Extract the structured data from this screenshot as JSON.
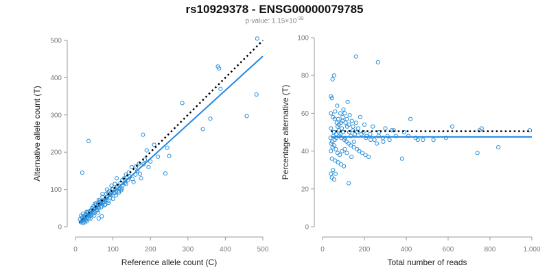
{
  "header": {
    "title": "rs10929378 - ENSG00000079785",
    "pvalue_prefix": "p-value: 1.15×10",
    "pvalue_exponent": "-39"
  },
  "colors": {
    "point": "#2a8fd8",
    "fit": "#1e88e5",
    "reference": "#000000"
  },
  "chart_data": [
    {
      "type": "scatter",
      "title": "",
      "xlabel": "Reference allele count (C)",
      "ylabel": "Alternative allele count (T)",
      "xlim": [
        0,
        500
      ],
      "ylim": [
        0,
        500
      ],
      "xticks": [
        0,
        100,
        200,
        300,
        400,
        500
      ],
      "yticks": [
        0,
        100,
        200,
        300,
        400,
        500
      ],
      "xtick_labels": [
        "0",
        "100",
        "200",
        "300",
        "400",
        "500"
      ],
      "ytick_labels": [
        "0",
        "100",
        "200",
        "300",
        "400",
        "500"
      ],
      "grid": false,
      "reference_line": {
        "style": "dotted",
        "slope": 1.0,
        "intercept": 0,
        "x_range": [
          10,
          500
        ]
      },
      "fit_line": {
        "style": "solid",
        "slope": 0.915,
        "intercept": 0,
        "x_range": [
          10,
          500
        ]
      },
      "points": [
        [
          485,
          505
        ],
        [
          380,
          430
        ],
        [
          383,
          425
        ],
        [
          387,
          370
        ],
        [
          483,
          355
        ],
        [
          457,
          297
        ],
        [
          285,
          332
        ],
        [
          360,
          290
        ],
        [
          340,
          262
        ],
        [
          210,
          220
        ],
        [
          180,
          247
        ],
        [
          245,
          212
        ],
        [
          250,
          190
        ],
        [
          240,
          143
        ],
        [
          220,
          188
        ],
        [
          200,
          175
        ],
        [
          195,
          160
        ],
        [
          190,
          205
        ],
        [
          185,
          180
        ],
        [
          170,
          170
        ],
        [
          175,
          130
        ],
        [
          165,
          150
        ],
        [
          160,
          140
        ],
        [
          155,
          120
        ],
        [
          150,
          160
        ],
        [
          145,
          135
        ],
        [
          140,
          125
        ],
        [
          135,
          115
        ],
        [
          130,
          130
        ],
        [
          125,
          110
        ],
        [
          120,
          118
        ],
        [
          118,
          100
        ],
        [
          115,
          95
        ],
        [
          110,
          105
        ],
        [
          105,
          90
        ],
        [
          100,
          100
        ],
        [
          95,
          85
        ],
        [
          92,
          78
        ],
        [
          90,
          95
        ],
        [
          88,
          70
        ],
        [
          85,
          80
        ],
        [
          82,
          88
        ],
        [
          80,
          60
        ],
        [
          78,
          72
        ],
        [
          75,
          65
        ],
        [
          72,
          80
        ],
        [
          70,
          55
        ],
        [
          68,
          62
        ],
        [
          65,
          70
        ],
        [
          62,
          50
        ],
        [
          60,
          58
        ],
        [
          58,
          45
        ],
        [
          55,
          62
        ],
        [
          52,
          48
        ],
        [
          50,
          40
        ],
        [
          48,
          55
        ],
        [
          45,
          38
        ],
        [
          42,
          45
        ],
        [
          40,
          35
        ],
        [
          38,
          42
        ],
        [
          35,
          30
        ],
        [
          32,
          38
        ],
        [
          30,
          25
        ],
        [
          28,
          32
        ],
        [
          25,
          20
        ],
        [
          22,
          28
        ],
        [
          20,
          18
        ],
        [
          18,
          25
        ],
        [
          15,
          12
        ],
        [
          12,
          20
        ],
        [
          35,
          230
        ],
        [
          18,
          145
        ],
        [
          110,
          130
        ],
        [
          125,
          125
        ],
        [
          135,
          140
        ],
        [
          105,
          115
        ],
        [
          98,
          102
        ],
        [
          86,
          92
        ],
        [
          74,
          68
        ],
        [
          66,
          60
        ],
        [
          56,
          52
        ],
        [
          46,
          44
        ],
        [
          36,
          34
        ],
        [
          26,
          24
        ],
        [
          16,
          15
        ],
        [
          24,
          30
        ],
        [
          34,
          40
        ],
        [
          44,
          50
        ],
        [
          54,
          58
        ],
        [
          64,
          66
        ],
        [
          28,
          18
        ],
        [
          38,
          28
        ],
        [
          48,
          36
        ],
        [
          58,
          44
        ],
        [
          68,
          52
        ],
        [
          78,
          58
        ],
        [
          88,
          64
        ],
        [
          70,
          28
        ],
        [
          62,
          22
        ],
        [
          20,
          10
        ],
        [
          30,
          15
        ],
        [
          40,
          22
        ],
        [
          50,
          30
        ],
        [
          60,
          38
        ],
        [
          82,
          72
        ],
        [
          92,
          86
        ],
        [
          102,
          92
        ],
        [
          112,
          108
        ],
        [
          122,
          98
        ],
        [
          132,
          118
        ],
        [
          142,
          145
        ],
        [
          152,
          128
        ],
        [
          162,
          162
        ],
        [
          172,
          142
        ],
        [
          182,
          168
        ],
        [
          100,
          75
        ],
        [
          108,
          84
        ],
        [
          116,
          92
        ],
        [
          124,
          102
        ],
        [
          96,
          110
        ],
        [
          15,
          30
        ],
        [
          20,
          35
        ],
        [
          25,
          12
        ],
        [
          30,
          40
        ],
        [
          35,
          22
        ],
        [
          42,
          30
        ],
        [
          52,
          62
        ],
        [
          62,
          72
        ],
        [
          72,
          88
        ],
        [
          84,
          100
        ]
      ]
    },
    {
      "type": "scatter",
      "title": "",
      "xlabel": "Total number of reads",
      "ylabel": "Percentage alternative (T)",
      "xlim": [
        0,
        1000
      ],
      "ylim": [
        0,
        100
      ],
      "xticks": [
        0,
        200,
        400,
        600,
        800,
        1000
      ],
      "yticks": [
        0,
        20,
        40,
        60,
        80,
        100
      ],
      "xtick_labels": [
        "0",
        "200",
        "400",
        "600",
        "800",
        "1,000"
      ],
      "ytick_labels": [
        "0",
        "20",
        "40",
        "60",
        "80",
        "100"
      ],
      "grid": false,
      "reference_line": {
        "style": "dotted",
        "value": 50.5,
        "x_range": [
          40,
          1000
        ]
      },
      "fit_line": {
        "style": "solid",
        "value": 47.5,
        "x_range": [
          40,
          1000
        ]
      },
      "points": [
        [
          160,
          90
        ],
        [
          265,
          87
        ],
        [
          55,
          80
        ],
        [
          48,
          78
        ],
        [
          40,
          69
        ],
        [
          45,
          68
        ],
        [
          120,
          66
        ],
        [
          70,
          64
        ],
        [
          100,
          62
        ],
        [
          60,
          61
        ],
        [
          85,
          60
        ],
        [
          130,
          59
        ],
        [
          180,
          58
        ],
        [
          420,
          57
        ],
        [
          75,
          57
        ],
        [
          95,
          56
        ],
        [
          140,
          56
        ],
        [
          110,
          55
        ],
        [
          160,
          55
        ],
        [
          200,
          54
        ],
        [
          620,
          53
        ],
        [
          760,
          52
        ],
        [
          990,
          51
        ],
        [
          750,
          51
        ],
        [
          340,
          51
        ],
        [
          300,
          52
        ],
        [
          270,
          50
        ],
        [
          330,
          51
        ],
        [
          390,
          50
        ],
        [
          240,
          53
        ],
        [
          40,
          52
        ],
        [
          55,
          50
        ],
        [
          65,
          49
        ],
        [
          80,
          48
        ],
        [
          90,
          47
        ],
        [
          105,
          46
        ],
        [
          115,
          45
        ],
        [
          125,
          44
        ],
        [
          135,
          43
        ],
        [
          150,
          42
        ],
        [
          165,
          41
        ],
        [
          175,
          40
        ],
        [
          190,
          39
        ],
        [
          205,
          38
        ],
        [
          220,
          37
        ],
        [
          45,
          36
        ],
        [
          60,
          35
        ],
        [
          75,
          34
        ],
        [
          88,
          33
        ],
        [
          102,
          32
        ],
        [
          50,
          30
        ],
        [
          40,
          28
        ],
        [
          45,
          26
        ],
        [
          55,
          25
        ],
        [
          62,
          28
        ],
        [
          125,
          23
        ],
        [
          380,
          36
        ],
        [
          740,
          39
        ],
        [
          840,
          42
        ],
        [
          530,
          46
        ],
        [
          480,
          46
        ],
        [
          445,
          47
        ],
        [
          410,
          48
        ],
        [
          455,
          46
        ],
        [
          590,
          47
        ],
        [
          350,
          48
        ],
        [
          320,
          46
        ],
        [
          290,
          45
        ],
        [
          260,
          44
        ],
        [
          230,
          46
        ],
        [
          210,
          48
        ],
        [
          195,
          50
        ],
        [
          170,
          52
        ],
        [
          155,
          49
        ],
        [
          145,
          51
        ],
        [
          135,
          48
        ],
        [
          128,
          50
        ],
        [
          118,
          53
        ],
        [
          108,
          47
        ],
        [
          98,
          50
        ],
        [
          92,
          52
        ],
        [
          86,
          49
        ],
        [
          78,
          51
        ],
        [
          72,
          53
        ],
        [
          66,
          47
        ],
        [
          58,
          46
        ],
        [
          52,
          48
        ],
        [
          46,
          45
        ],
        [
          42,
          44
        ],
        [
          38,
          47
        ],
        [
          40,
          40
        ],
        [
          48,
          42
        ],
        [
          56,
          43
        ],
        [
          64,
          41
        ],
        [
          72,
          39
        ],
        [
          82,
          38
        ],
        [
          94,
          40
        ],
        [
          106,
          41
        ],
        [
          116,
          39
        ],
        [
          138,
          37
        ],
        [
          40,
          60
        ],
        [
          50,
          58
        ],
        [
          58,
          57
        ],
        [
          68,
          55
        ],
        [
          78,
          54
        ],
        [
          88,
          55
        ],
        [
          96,
          58
        ],
        [
          106,
          60
        ],
        [
          116,
          57
        ],
        [
          126,
          54
        ],
        [
          146,
          53
        ],
        [
          166,
          50
        ],
        [
          186,
          49
        ],
        [
          208,
          47
        ],
        [
          228,
          49
        ],
        [
          248,
          46
        ],
        [
          268,
          48
        ],
        [
          288,
          47
        ],
        [
          310,
          48
        ],
        [
          150,
          45
        ]
      ]
    }
  ]
}
